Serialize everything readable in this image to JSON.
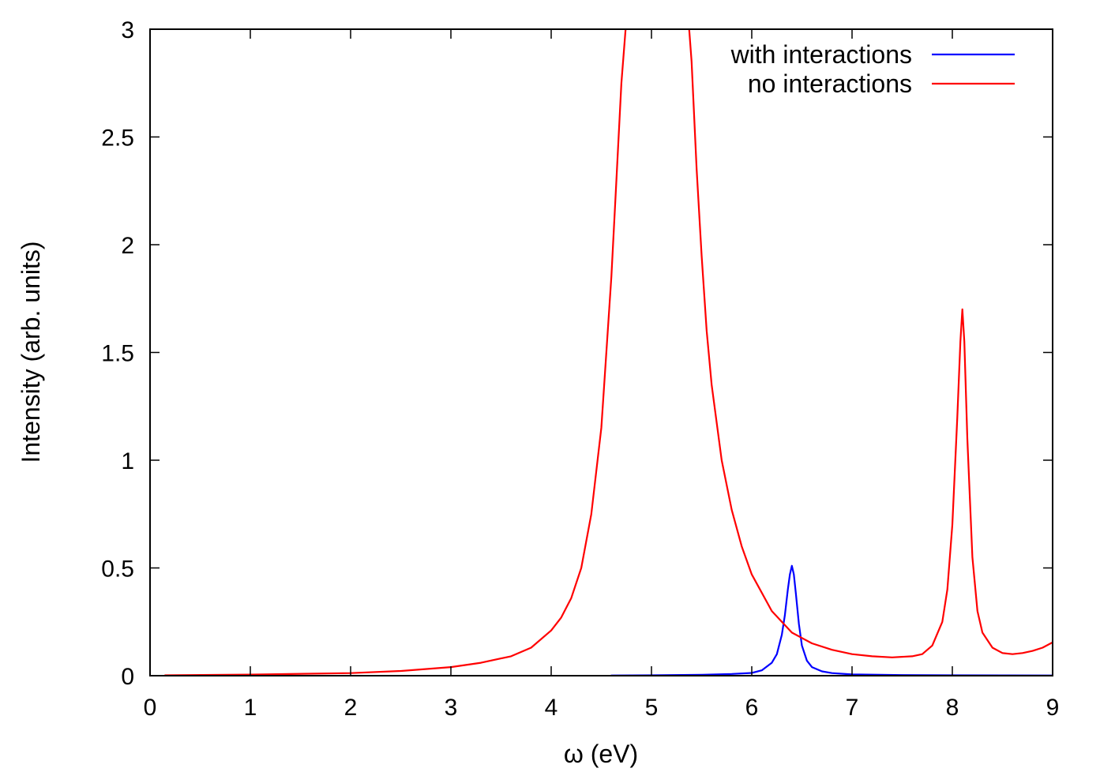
{
  "chart_data": {
    "type": "line",
    "title": "",
    "xlabel": "ω (eV)",
    "ylabel": "Intensity (arb. units)",
    "xlim": [
      0,
      9
    ],
    "ylim": [
      0,
      3
    ],
    "xticks": [
      0,
      1,
      2,
      3,
      4,
      5,
      6,
      7,
      8,
      9
    ],
    "xtick_labels": [
      "0",
      "1",
      "2",
      "3",
      "4",
      "5",
      "6",
      "7",
      "8",
      "9"
    ],
    "yticks": [
      0,
      0.5,
      1,
      1.5,
      2,
      2.5,
      3
    ],
    "ytick_labels": [
      "0",
      "0.5",
      "1",
      "1.5",
      "2",
      "2.5",
      "3"
    ],
    "grid": false,
    "legend_position": "top-right",
    "series": [
      {
        "name": "with interactions",
        "color": "#0000ff",
        "x": [
          4.6,
          5.0,
          5.5,
          5.8,
          6.0,
          6.1,
          6.2,
          6.25,
          6.3,
          6.33,
          6.36,
          6.38,
          6.4,
          6.42,
          6.44,
          6.47,
          6.5,
          6.55,
          6.6,
          6.7,
          6.8,
          7.0,
          7.5,
          8.0,
          9.0
        ],
        "y": [
          0.001,
          0.002,
          0.004,
          0.008,
          0.013,
          0.025,
          0.06,
          0.1,
          0.19,
          0.28,
          0.4,
          0.47,
          0.51,
          0.47,
          0.38,
          0.24,
          0.14,
          0.07,
          0.04,
          0.02,
          0.012,
          0.006,
          0.003,
          0.002,
          0.001
        ]
      },
      {
        "name": "no interactions",
        "color": "#ff0000",
        "x": [
          0.15,
          1.0,
          2.0,
          2.5,
          3.0,
          3.3,
          3.6,
          3.8,
          4.0,
          4.1,
          4.2,
          4.3,
          4.4,
          4.5,
          4.6,
          4.65,
          4.7,
          4.75,
          4.78,
          5.36,
          5.4,
          5.45,
          5.5,
          5.55,
          5.6,
          5.7,
          5.8,
          5.9,
          6.0,
          6.2,
          6.4,
          6.6,
          6.8,
          7.0,
          7.2,
          7.4,
          7.6,
          7.7,
          7.8,
          7.9,
          7.95,
          8.0,
          8.05,
          8.08,
          8.1,
          8.12,
          8.15,
          8.2,
          8.25,
          8.3,
          8.4,
          8.5,
          8.6,
          8.7,
          8.8,
          8.9,
          9.0
        ],
        "y": [
          0.002,
          0.005,
          0.012,
          0.022,
          0.04,
          0.06,
          0.09,
          0.13,
          0.21,
          0.27,
          0.36,
          0.5,
          0.75,
          1.15,
          1.85,
          2.3,
          2.75,
          3.05,
          3.1,
          3.1,
          2.85,
          2.35,
          1.95,
          1.6,
          1.35,
          1.0,
          0.77,
          0.6,
          0.47,
          0.3,
          0.2,
          0.15,
          0.12,
          0.1,
          0.09,
          0.085,
          0.09,
          0.1,
          0.14,
          0.25,
          0.4,
          0.7,
          1.2,
          1.55,
          1.7,
          1.55,
          1.1,
          0.55,
          0.3,
          0.2,
          0.13,
          0.105,
          0.1,
          0.105,
          0.115,
          0.13,
          0.155
        ]
      }
    ]
  }
}
